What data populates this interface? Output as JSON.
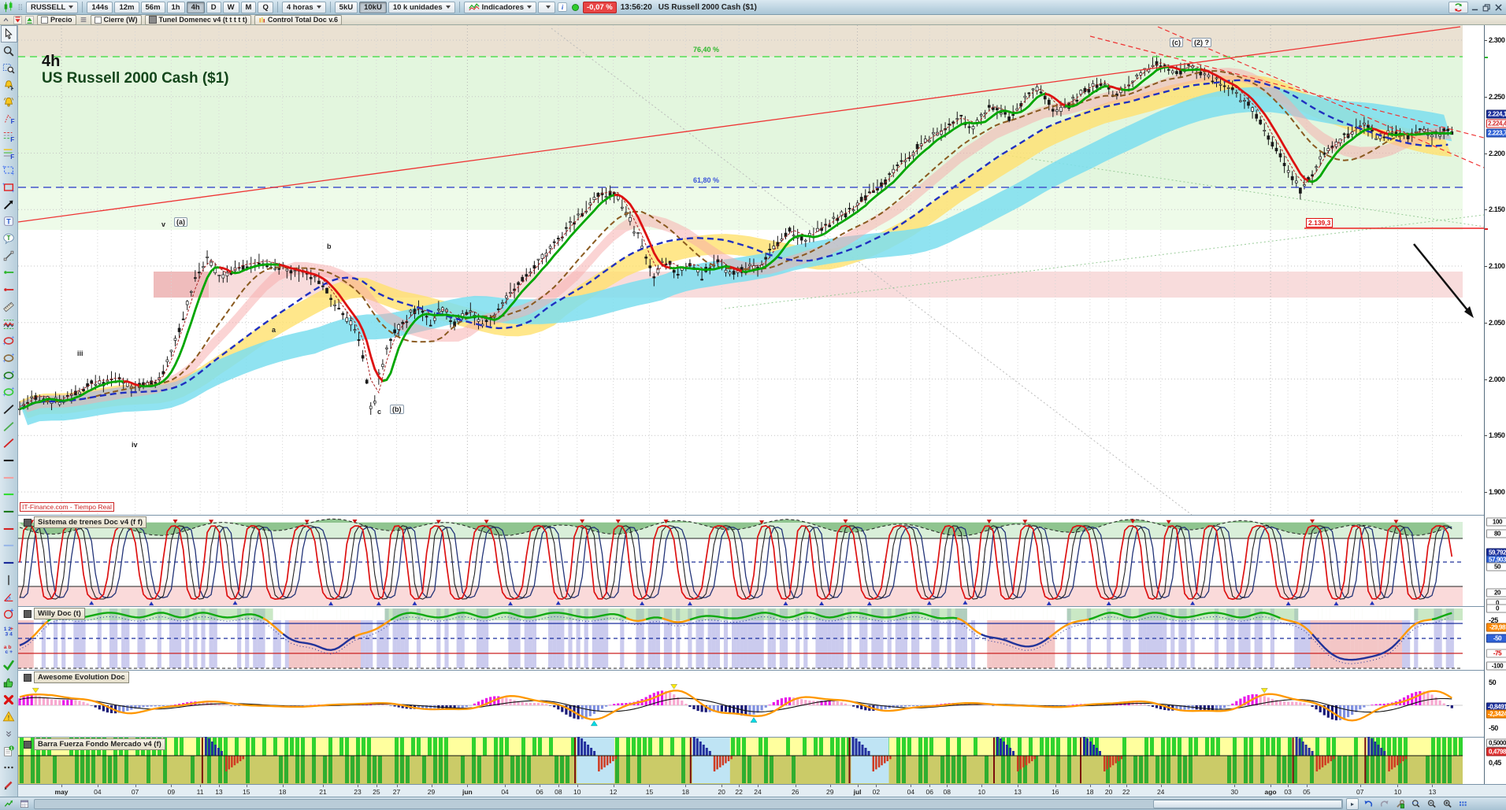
{
  "toolbar1": {
    "symbol": "RUSSELL",
    "timeframes": [
      "144s",
      "12m",
      "56m",
      "1h",
      "4h",
      "D",
      "W",
      "M",
      "Q"
    ],
    "active_timeframe": "4h",
    "period_select": "4 horas",
    "unit_buttons": [
      "5kU",
      "10kU"
    ],
    "active_unit": "10kU",
    "units_select": "10 k unidades",
    "indicators_label": "Indicadores",
    "change_badge": "-0,07 %",
    "quote_time": "13:56:20",
    "instrument": "US Russell 2000 Cash ($1)"
  },
  "toolbar2": {
    "price_label": "Precio",
    "close_label": "Cierre (W)",
    "tunnel_label": "Tunel Domenec v4 (t t t t t)",
    "control_label": "Control Total Doc v.6"
  },
  "sidebar": {
    "tools": [
      {
        "name": "cursor-tool",
        "kind": "pointer"
      },
      {
        "name": "zoom-tool",
        "kind": "magnifier"
      },
      {
        "name": "zoom-area-tool",
        "kind": "zoomsel"
      },
      {
        "name": "add-alert-tool",
        "kind": "bellplus"
      },
      {
        "name": "alerts-tool",
        "kind": "bell"
      },
      {
        "name": "fibonacci-tool",
        "kind": "ftool"
      },
      {
        "name": "fib-retracement-tool",
        "kind": "fib"
      },
      {
        "name": "fib-levels-tool",
        "kind": "fib2"
      },
      {
        "name": "rectangle-blue-tool",
        "kind": "rectblue"
      },
      {
        "name": "rectangle-red-tool",
        "kind": "rectred"
      },
      {
        "name": "arrow-tool",
        "kind": "arrow"
      },
      {
        "name": "text-tool",
        "kind": "textT"
      },
      {
        "name": "callout-tool",
        "kind": "bubble"
      },
      {
        "name": "segment-tool",
        "kind": "segment"
      },
      {
        "name": "hline-green-tool",
        "kind": "hlinedot",
        "color": "#2ab52a"
      },
      {
        "name": "hline-red-tool",
        "kind": "hlinedot",
        "color": "#d42222"
      },
      {
        "name": "ruler-tool",
        "kind": "ruler"
      },
      {
        "name": "channel-wave-tool",
        "kind": "wave"
      },
      {
        "name": "ellipse-red-tool",
        "kind": "ellipse",
        "color": "#d43333"
      },
      {
        "name": "ellipse-brown-tool",
        "kind": "ellipse",
        "color": "#8a6a3a"
      },
      {
        "name": "ellipse-darkgreen-tool",
        "kind": "ellipse",
        "color": "#1e7a1e"
      },
      {
        "name": "ellipse-green-tool",
        "kind": "ellipse",
        "color": "#33cc33"
      },
      {
        "name": "trendline-black-tool",
        "kind": "dline",
        "color": "#222222"
      },
      {
        "name": "trendline-green-tool",
        "kind": "dline",
        "color": "#4cae4c"
      },
      {
        "name": "trendline-red-tool",
        "kind": "dline",
        "color": "#d42222"
      },
      {
        "name": "hline-black-tool",
        "kind": "hline",
        "color": "#222222"
      },
      {
        "name": "hline-pink-tool",
        "kind": "hline",
        "color": "#f2a0a0"
      },
      {
        "name": "hline-brightgreen-tool",
        "kind": "hline",
        "color": "#33dd33"
      },
      {
        "name": "hline-darkgreen-tool",
        "kind": "hline",
        "color": "#1e7a1e"
      },
      {
        "name": "hline-red2-tool",
        "kind": "hline",
        "color": "#d42222"
      },
      {
        "name": "hline-lightblue-tool",
        "kind": "hline",
        "color": "#9ab8e8"
      },
      {
        "name": "hline-navy-tool",
        "kind": "hline",
        "color": "#1a2a9a"
      },
      {
        "name": "vline-tool",
        "kind": "vline"
      },
      {
        "name": "angle-tool",
        "kind": "angle"
      },
      {
        "name": "circle-plus-tool",
        "kind": "circleplus"
      },
      {
        "name": "numbers-tool",
        "kind": "nums"
      },
      {
        "name": "letters-tool",
        "kind": "abc"
      },
      {
        "name": "validate-tool",
        "kind": "check"
      },
      {
        "name": "like-tool",
        "kind": "thumb"
      },
      {
        "name": "delete-tool",
        "kind": "cross"
      },
      {
        "name": "warning-tool",
        "kind": "warn"
      },
      {
        "name": "collapse-tools",
        "kind": "chevron"
      },
      {
        "name": "notes-tool",
        "kind": "docbadge"
      },
      {
        "name": "more-tool",
        "kind": "dots3"
      },
      {
        "name": "draw-pencil-tool",
        "kind": "pencil"
      }
    ]
  },
  "main_chart": {
    "timeframe_label": "4h",
    "title": "US Russell 2000 Cash ($1)",
    "fib_76": "76,40 %",
    "fib_618": "61,80 %",
    "support_price": "2.139,3",
    "watermark": "IT-Finance.com - Tiempo Real",
    "wave_labels": {
      "v": "v",
      "a_paren": "(a)",
      "b": "b",
      "a": "a",
      "iii": "iii",
      "iv": "iv",
      "c": "c",
      "b_paren": "(b)",
      "c_paren": "(c)",
      "two_paren": "(2) ?"
    }
  },
  "price_axis": {
    "ticks": [
      "2.300",
      "2.250",
      "2.200",
      "2.150",
      "2.100",
      "2.050",
      "2.000",
      "1.950",
      "1.900"
    ],
    "badges": [
      {
        "text": "2.224,1",
        "style": "navy"
      },
      {
        "text": "2.224,4",
        "style": "redoutline"
      },
      {
        "text": "2.223,7",
        "style": "blue"
      }
    ]
  },
  "panels": [
    {
      "title": "Sistema de trenes Doc v4 (f f)",
      "axis": [
        {
          "t": "100",
          "s": "box",
          "y": 9
        },
        {
          "t": "80",
          "s": "box",
          "y": 24
        },
        {
          "t": "59,792",
          "s": "navy",
          "y": 48
        },
        {
          "t": "57,903",
          "s": "blue",
          "y": 57
        },
        {
          "t": "50",
          "s": "box",
          "y": 66
        },
        {
          "t": "20",
          "s": "box",
          "y": 99
        },
        {
          "t": "0",
          "s": "box",
          "y": 112
        }
      ]
    },
    {
      "title": "Willy Doc (t)",
      "axis": [
        {
          "t": "0",
          "s": "box",
          "y": 3
        },
        {
          "t": "-25",
          "s": "plain",
          "y": 18
        },
        {
          "t": "-29,98",
          "s": "orange",
          "y": 27
        },
        {
          "t": "-50",
          "s": "blue",
          "y": 41
        },
        {
          "t": "-75",
          "s": "redtext",
          "y": 60
        },
        {
          "t": "-100",
          "s": "box",
          "y": 76
        }
      ]
    },
    {
      "title": "Awesome Evolution Doc",
      "axis": [
        {
          "t": "50",
          "s": "plain",
          "y": 16
        },
        {
          "t": "-0,8491",
          "s": "navy",
          "y": 47
        },
        {
          "t": "-2,3424",
          "s": "orange",
          "y": 56
        },
        {
          "t": "-50",
          "s": "plain",
          "y": 74
        }
      ]
    },
    {
      "title": "Barra Fuerza Fondo Mercado v4 (f)",
      "axis": [
        {
          "t": "0,5000",
          "s": "box",
          "y": 8
        },
        {
          "t": "0,4798",
          "s": "redbadge",
          "y": 19
        },
        {
          "t": "0,45",
          "s": "plain",
          "y": 33
        }
      ]
    }
  ],
  "time_axis": {
    "labels": [
      [
        "may",
        0.03
      ],
      [
        "04",
        0.055
      ],
      [
        "07",
        0.081
      ],
      [
        "09",
        0.106
      ],
      [
        "11",
        0.126
      ],
      [
        "13",
        0.139
      ],
      [
        "15",
        0.158
      ],
      [
        "18",
        0.183
      ],
      [
        "21",
        0.211
      ],
      [
        "23",
        0.235
      ],
      [
        "25",
        0.248
      ],
      [
        "27",
        0.262
      ],
      [
        "29",
        0.286
      ],
      [
        "jun",
        0.311
      ],
      [
        "04",
        0.337
      ],
      [
        "06",
        0.361
      ],
      [
        "08",
        0.374
      ],
      [
        "10",
        0.387
      ],
      [
        "12",
        0.412
      ],
      [
        "15",
        0.437
      ],
      [
        "18",
        0.462
      ],
      [
        "20",
        0.487
      ],
      [
        "22",
        0.499
      ],
      [
        "24",
        0.512
      ],
      [
        "26",
        0.538
      ],
      [
        "29",
        0.562
      ],
      [
        "jul",
        0.581
      ],
      [
        "02",
        0.594
      ],
      [
        "04",
        0.618
      ],
      [
        "06",
        0.631
      ],
      [
        "08",
        0.643
      ],
      [
        "10",
        0.667
      ],
      [
        "13",
        0.692
      ],
      [
        "16",
        0.718
      ],
      [
        "18",
        0.742
      ],
      [
        "20",
        0.755
      ],
      [
        "22",
        0.767
      ],
      [
        "24",
        0.791
      ],
      [
        "30",
        0.842
      ],
      [
        "ago",
        0.867
      ],
      [
        "03",
        0.879
      ],
      [
        "05",
        0.892
      ],
      [
        "07",
        0.929
      ],
      [
        "10",
        0.955
      ],
      [
        "13",
        0.979
      ]
    ]
  },
  "chart_data": {
    "type": "candlestick",
    "instrument": "US Russell 2000 Cash ($1)",
    "timeframe": "4h",
    "ylim": [
      1.89,
      2.31
    ],
    "price_ticks": [
      2.3,
      2.25,
      2.2,
      2.15,
      2.1,
      2.05,
      2.0,
      1.95,
      1.9
    ],
    "fib_levels": {
      "76,40 %": 2.285,
      "61,80 %": 2.17
    },
    "support_level": 2.1393,
    "last_price": 2.2237,
    "session_change_pct": "-0,07 %",
    "x_months": [
      "may",
      "jun",
      "jul",
      "ago"
    ],
    "indicator_panels": [
      "Sistema de trenes Doc v4 (f f)",
      "Willy Doc (t)",
      "Awesome Evolution Doc",
      "Barra Fuerza Fondo Mercado v4 (f)"
    ],
    "price_path": [
      [
        0.0,
        1.972
      ],
      [
        0.01,
        1.983
      ],
      [
        0.027,
        1.979
      ],
      [
        0.044,
        1.992
      ],
      [
        0.067,
        2.0
      ],
      [
        0.08,
        1.992
      ],
      [
        0.097,
        1.996
      ],
      [
        0.11,
        2.038
      ],
      [
        0.123,
        2.09
      ],
      [
        0.131,
        2.108
      ],
      [
        0.14,
        2.089
      ],
      [
        0.153,
        2.099
      ],
      [
        0.167,
        2.103
      ],
      [
        0.18,
        2.1
      ],
      [
        0.193,
        2.094
      ],
      [
        0.207,
        2.089
      ],
      [
        0.217,
        2.072
      ],
      [
        0.227,
        2.055
      ],
      [
        0.237,
        2.034
      ],
      [
        0.245,
        1.968
      ],
      [
        0.25,
        2.004
      ],
      [
        0.257,
        2.034
      ],
      [
        0.267,
        2.051
      ],
      [
        0.277,
        2.064
      ],
      [
        0.285,
        2.049
      ],
      [
        0.293,
        2.066
      ],
      [
        0.301,
        2.047
      ],
      [
        0.312,
        2.06
      ],
      [
        0.321,
        2.049
      ],
      [
        0.33,
        2.055
      ],
      [
        0.338,
        2.072
      ],
      [
        0.348,
        2.085
      ],
      [
        0.36,
        2.102
      ],
      [
        0.373,
        2.124
      ],
      [
        0.386,
        2.141
      ],
      [
        0.4,
        2.161
      ],
      [
        0.413,
        2.165
      ],
      [
        0.42,
        2.149
      ],
      [
        0.43,
        2.124
      ],
      [
        0.44,
        2.089
      ],
      [
        0.448,
        2.105
      ],
      [
        0.456,
        2.093
      ],
      [
        0.465,
        2.102
      ],
      [
        0.473,
        2.091
      ],
      [
        0.483,
        2.105
      ],
      [
        0.493,
        2.092
      ],
      [
        0.503,
        2.099
      ],
      [
        0.513,
        2.097
      ],
      [
        0.523,
        2.117
      ],
      [
        0.533,
        2.132
      ],
      [
        0.545,
        2.122
      ],
      [
        0.556,
        2.134
      ],
      [
        0.567,
        2.142
      ],
      [
        0.578,
        2.153
      ],
      [
        0.589,
        2.165
      ],
      [
        0.6,
        2.175
      ],
      [
        0.611,
        2.191
      ],
      [
        0.62,
        2.201
      ],
      [
        0.627,
        2.21
      ],
      [
        0.636,
        2.217
      ],
      [
        0.644,
        2.225
      ],
      [
        0.652,
        2.232
      ],
      [
        0.66,
        2.219
      ],
      [
        0.672,
        2.242
      ],
      [
        0.686,
        2.23
      ],
      [
        0.699,
        2.251
      ],
      [
        0.705,
        2.255
      ],
      [
        0.719,
        2.238
      ],
      [
        0.729,
        2.245
      ],
      [
        0.742,
        2.259
      ],
      [
        0.752,
        2.263
      ],
      [
        0.759,
        2.251
      ],
      [
        0.769,
        2.259
      ],
      [
        0.779,
        2.272
      ],
      [
        0.789,
        2.28
      ],
      [
        0.802,
        2.272
      ],
      [
        0.812,
        2.276
      ],
      [
        0.822,
        2.267
      ],
      [
        0.832,
        2.263
      ],
      [
        0.842,
        2.255
      ],
      [
        0.852,
        2.242
      ],
      [
        0.865,
        2.217
      ],
      [
        0.878,
        2.187
      ],
      [
        0.888,
        2.168
      ],
      [
        0.895,
        2.178
      ],
      [
        0.901,
        2.195
      ],
      [
        0.911,
        2.208
      ],
      [
        0.921,
        2.217
      ],
      [
        0.931,
        2.225
      ],
      [
        0.941,
        2.212
      ],
      [
        0.951,
        2.218
      ],
      [
        0.961,
        2.215
      ],
      [
        0.971,
        2.218
      ],
      [
        0.981,
        2.216
      ],
      [
        0.993,
        2.22
      ]
    ]
  }
}
